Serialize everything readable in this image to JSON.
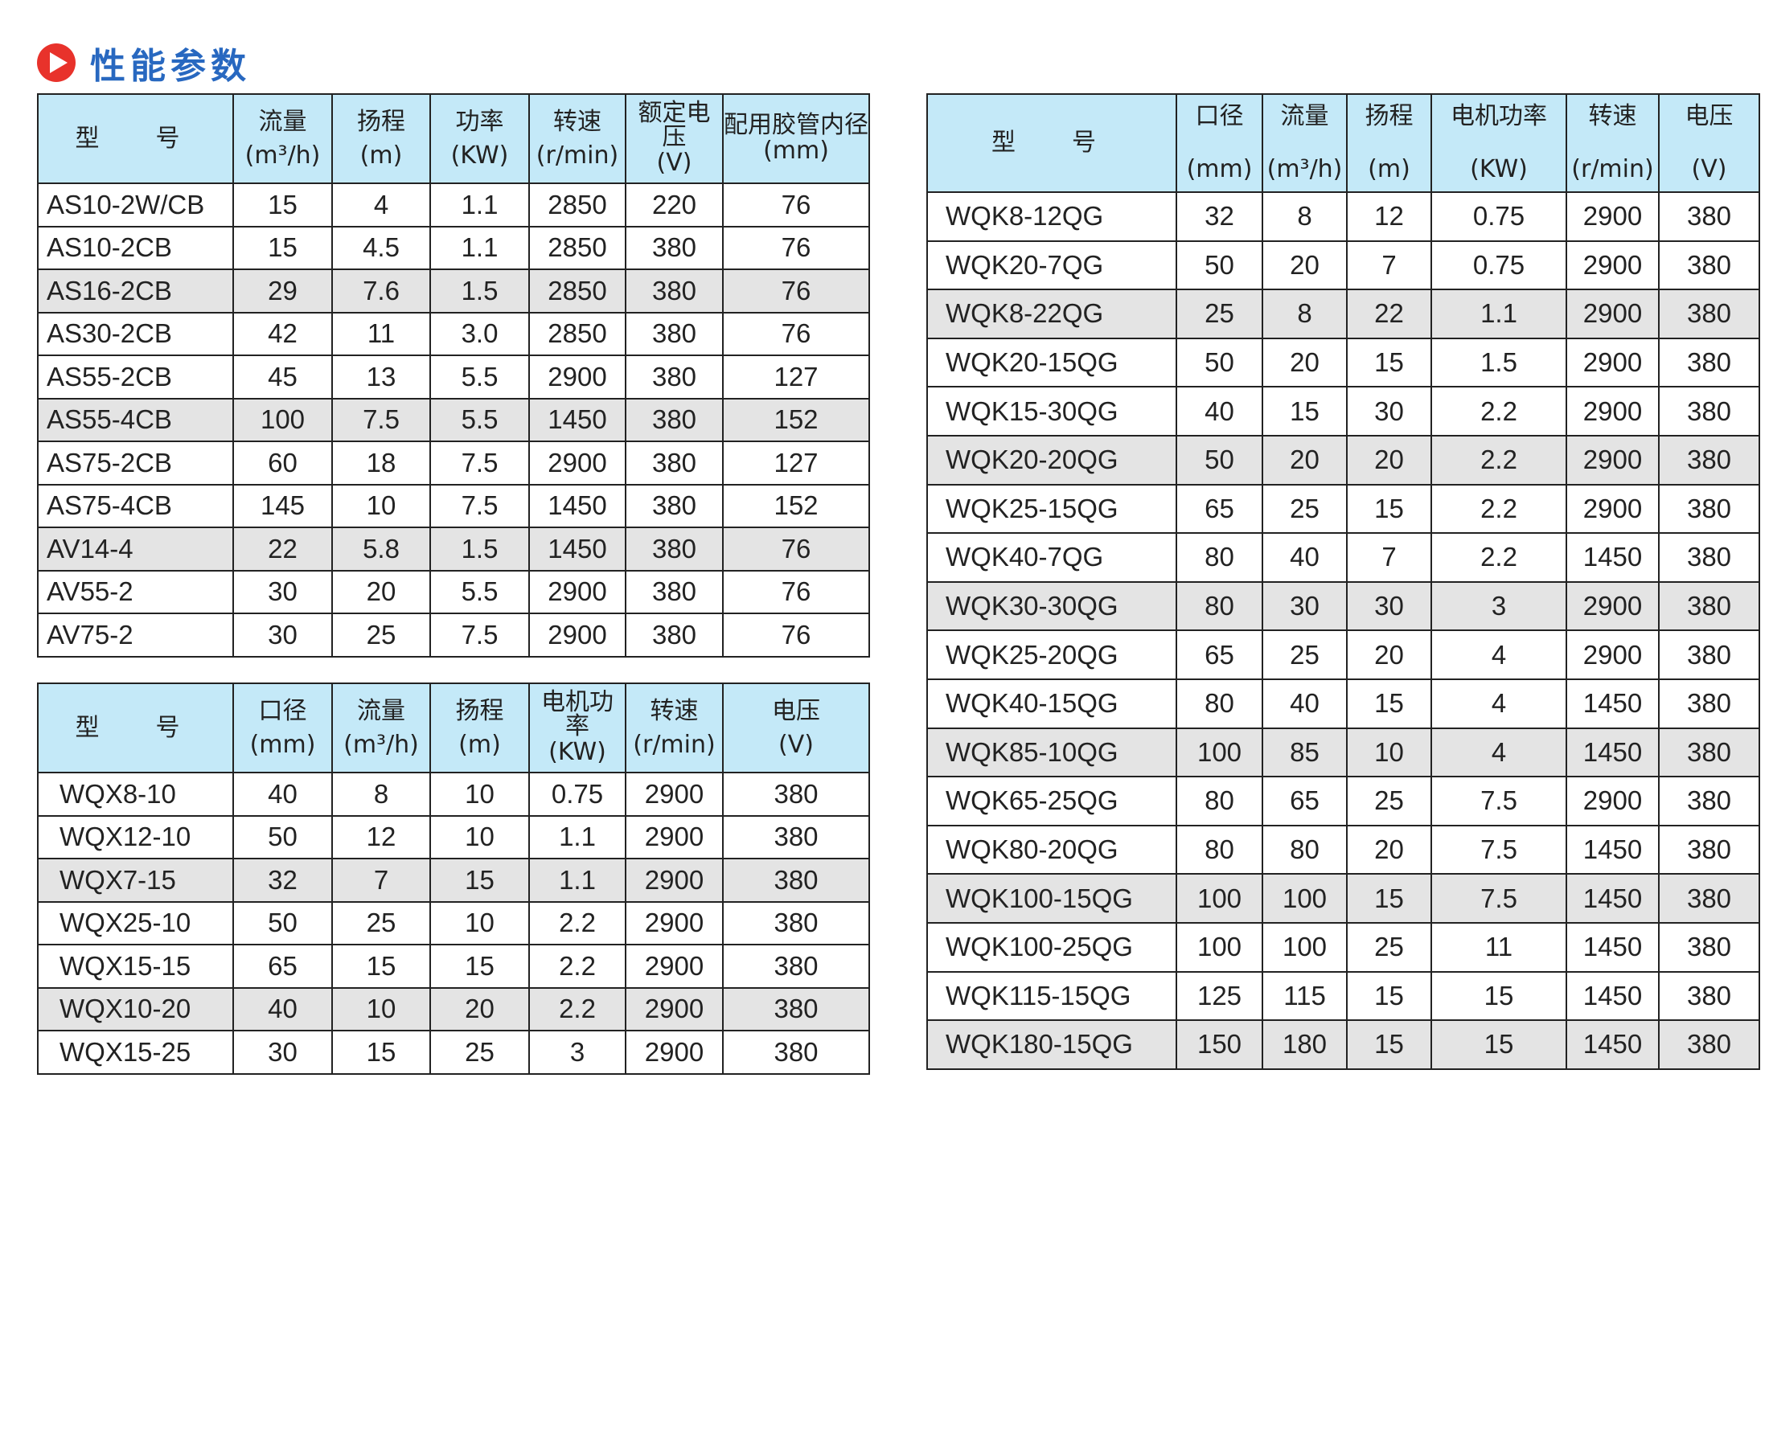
{
  "title": "性能参数",
  "colors": {
    "title": "#2868c0",
    "icon": "#e8322b",
    "header_bg": "#c4e9f8",
    "shaded_row": "#e4e4e4"
  },
  "table_as": {
    "headers": [
      [
        "型　号",
        ""
      ],
      [
        "流量",
        "(m³/h)"
      ],
      [
        "扬程",
        "(m)"
      ],
      [
        "功率",
        "(KW)"
      ],
      [
        "转速",
        "(r/min)"
      ],
      [
        "额定电压",
        "(V)"
      ],
      [
        "配用胶管内径",
        "(mm)"
      ]
    ],
    "rows": [
      [
        "AS10-2W/CB",
        "15",
        "4",
        "1.1",
        "2850",
        "220",
        "76"
      ],
      [
        "AS10-2CB",
        "15",
        "4.5",
        "1.1",
        "2850",
        "380",
        "76"
      ],
      [
        "AS16-2CB",
        "29",
        "7.6",
        "1.5",
        "2850",
        "380",
        "76"
      ],
      [
        "AS30-2CB",
        "42",
        "11",
        "3.0",
        "2850",
        "380",
        "76"
      ],
      [
        "AS55-2CB",
        "45",
        "13",
        "5.5",
        "2900",
        "380",
        "127"
      ],
      [
        "AS55-4CB",
        "100",
        "7.5",
        "5.5",
        "1450",
        "380",
        "152"
      ],
      [
        "AS75-2CB",
        "60",
        "18",
        "7.5",
        "2900",
        "380",
        "127"
      ],
      [
        "AS75-4CB",
        "145",
        "10",
        "7.5",
        "1450",
        "380",
        "152"
      ],
      [
        "AV14-4",
        "22",
        "5.8",
        "1.5",
        "1450",
        "380",
        "76"
      ],
      [
        "AV55-2",
        "30",
        "20",
        "5.5",
        "2900",
        "380",
        "76"
      ],
      [
        "AV75-2",
        "30",
        "25",
        "7.5",
        "2900",
        "380",
        "76"
      ]
    ]
  },
  "table_wqx": {
    "headers": [
      [
        "型　号",
        ""
      ],
      [
        "口径",
        "(mm)"
      ],
      [
        "流量",
        "(m³/h)"
      ],
      [
        "扬程",
        "(m)"
      ],
      [
        "电机功率",
        "(KW)"
      ],
      [
        "转速",
        "(r/min)"
      ],
      [
        "电压",
        "(V)"
      ]
    ],
    "rows": [
      [
        "WQX8-10",
        "40",
        "8",
        "10",
        "0.75",
        "2900",
        "380"
      ],
      [
        "WQX12-10",
        "50",
        "12",
        "10",
        "1.1",
        "2900",
        "380"
      ],
      [
        "WQX7-15",
        "32",
        "7",
        "15",
        "1.1",
        "2900",
        "380"
      ],
      [
        "WQX25-10",
        "50",
        "25",
        "10",
        "2.2",
        "2900",
        "380"
      ],
      [
        "WQX15-15",
        "65",
        "15",
        "15",
        "2.2",
        "2900",
        "380"
      ],
      [
        "WQX10-20",
        "40",
        "10",
        "20",
        "2.2",
        "2900",
        "380"
      ],
      [
        "WQX15-25",
        "30",
        "15",
        "25",
        "3",
        "2900",
        "380"
      ]
    ]
  },
  "table_wqk": {
    "headers": [
      [
        "型　号",
        ""
      ],
      [
        "口径",
        "(mm)"
      ],
      [
        "流量",
        "(m³/h)"
      ],
      [
        "扬程",
        "(m)"
      ],
      [
        "电机功率",
        "(KW)"
      ],
      [
        "转速",
        "(r/min)"
      ],
      [
        "电压",
        "(V)"
      ]
    ],
    "rows": [
      [
        "WQK8-12QG",
        "32",
        "8",
        "12",
        "0.75",
        "2900",
        "380"
      ],
      [
        "WQK20-7QG",
        "50",
        "20",
        "7",
        "0.75",
        "2900",
        "380"
      ],
      [
        "WQK8-22QG",
        "25",
        "8",
        "22",
        "1.1",
        "2900",
        "380"
      ],
      [
        "WQK20-15QG",
        "50",
        "20",
        "15",
        "1.5",
        "2900",
        "380"
      ],
      [
        "WQK15-30QG",
        "40",
        "15",
        "30",
        "2.2",
        "2900",
        "380"
      ],
      [
        "WQK20-20QG",
        "50",
        "20",
        "20",
        "2.2",
        "2900",
        "380"
      ],
      [
        "WQK25-15QG",
        "65",
        "25",
        "15",
        "2.2",
        "2900",
        "380"
      ],
      [
        "WQK40-7QG",
        "80",
        "40",
        "7",
        "2.2",
        "1450",
        "380"
      ],
      [
        "WQK30-30QG",
        "80",
        "30",
        "30",
        "3",
        "2900",
        "380"
      ],
      [
        "WQK25-20QG",
        "65",
        "25",
        "20",
        "4",
        "2900",
        "380"
      ],
      [
        "WQK40-15QG",
        "80",
        "40",
        "15",
        "4",
        "1450",
        "380"
      ],
      [
        "WQK85-10QG",
        "100",
        "85",
        "10",
        "4",
        "1450",
        "380"
      ],
      [
        "WQK65-25QG",
        "80",
        "65",
        "25",
        "7.5",
        "2900",
        "380"
      ],
      [
        "WQK80-20QG",
        "80",
        "80",
        "20",
        "7.5",
        "1450",
        "380"
      ],
      [
        "WQK100-15QG",
        "100",
        "100",
        "15",
        "7.5",
        "1450",
        "380"
      ],
      [
        "WQK100-25QG",
        "100",
        "100",
        "25",
        "11",
        "1450",
        "380"
      ],
      [
        "WQK115-15QG",
        "125",
        "115",
        "15",
        "15",
        "1450",
        "380"
      ],
      [
        "WQK180-15QG",
        "150",
        "180",
        "15",
        "15",
        "1450",
        "380"
      ]
    ]
  }
}
